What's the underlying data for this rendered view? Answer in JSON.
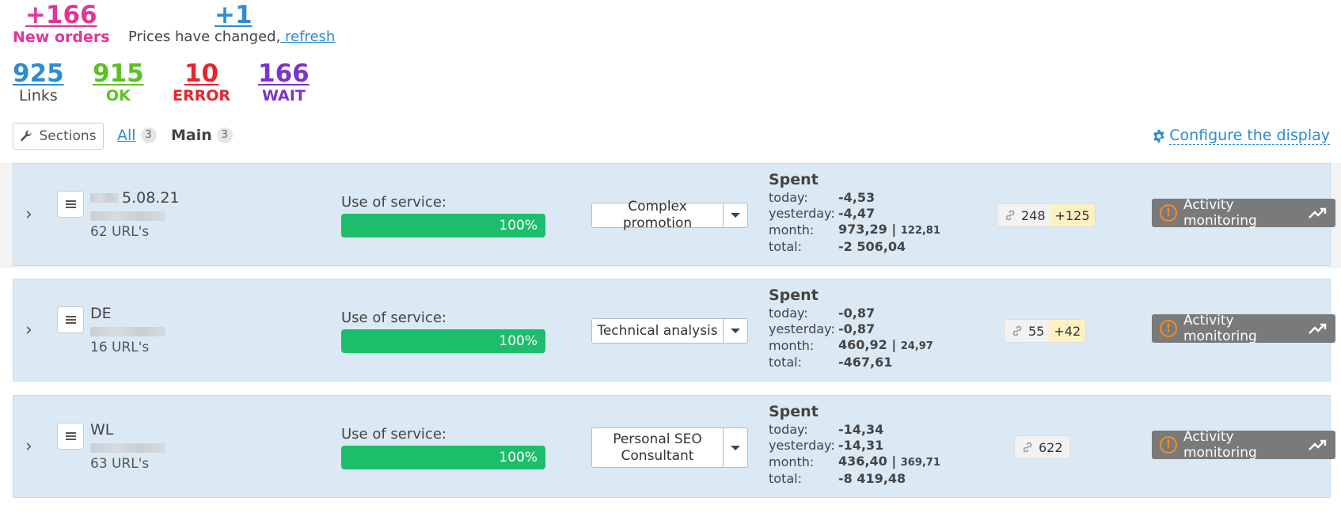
{
  "summary": {
    "new_orders": {
      "value": "+166",
      "label": "New orders"
    },
    "prices": {
      "value": "+1",
      "text": "Prices have changed,",
      "link": " refresh"
    }
  },
  "stats": [
    {
      "value": "925",
      "label": "Links"
    },
    {
      "value": "915",
      "label": "OK"
    },
    {
      "value": "10",
      "label": "ERROR"
    },
    {
      "value": "166",
      "label": "WAIT"
    }
  ],
  "toolbar": {
    "sections_label": "Sections",
    "tabs": [
      {
        "label": "All",
        "count": "3"
      },
      {
        "label": "Main",
        "count": "3"
      }
    ],
    "configure_label": "Configure the display"
  },
  "projects": [
    {
      "name": "5.08.21",
      "urls": "62 URL's",
      "use_label": "Use of service:",
      "usage": "100%",
      "usage_fraction": 1.0,
      "service": "Complex promotion",
      "spent_title": "Spent",
      "today_label": "today:",
      "today": "-4,53",
      "yesterday_label": "yesterday:",
      "yesterday": "-4,47",
      "month_label": "month:",
      "month": "973,29 |",
      "month_extra": "122,81",
      "total_label": "total:",
      "total": "-2 506,04",
      "links": "248",
      "links_new": "+125",
      "monitor_label": "Activity monitoring"
    },
    {
      "name": "DE",
      "urls": "16 URL's",
      "use_label": "Use of service:",
      "usage": "100%",
      "usage_fraction": 1.0,
      "service": "Technical analysis",
      "spent_title": "Spent",
      "today_label": "today:",
      "today": "-0,87",
      "yesterday_label": "yesterday:",
      "yesterday": "-0,87",
      "month_label": "month:",
      "month": "460,92 |",
      "month_extra": "24,97",
      "total_label": "total:",
      "total": "-467,61",
      "links": "55",
      "links_new": "+42",
      "monitor_label": "Activity monitoring"
    },
    {
      "name": "WL",
      "urls": "63 URL's",
      "use_label": "Use of service:",
      "usage": "100%",
      "usage_fraction": 1.0,
      "service": "Personal SEO Consultant",
      "spent_title": "Spent",
      "today_label": "today:",
      "today": "-14,34",
      "yesterday_label": "yesterday:",
      "yesterday": "-14,31",
      "month_label": "month:",
      "month": "436,40 |",
      "month_extra": "369,71",
      "total_label": "total:",
      "total": "-8 419,48",
      "links": "622",
      "monitor_label": "Activity monitoring"
    }
  ],
  "colors": {
    "new_orders": "#e0359a",
    "link": "#2f8ccf",
    "ok": "#5cbf25",
    "error": "#e3262f",
    "wait": "#7a35c6",
    "progress": "#1cbe6b",
    "row_bg": "#dbe9f4",
    "monitor_bg": "#7a7a7a"
  },
  "icons": {
    "sections": "wrench-icon",
    "configure": "gear-icon",
    "expand": "chevron-right-icon",
    "menu": "menu-icon",
    "links": "link-icon",
    "warning": "warning-icon",
    "trend": "trending-up-icon"
  }
}
